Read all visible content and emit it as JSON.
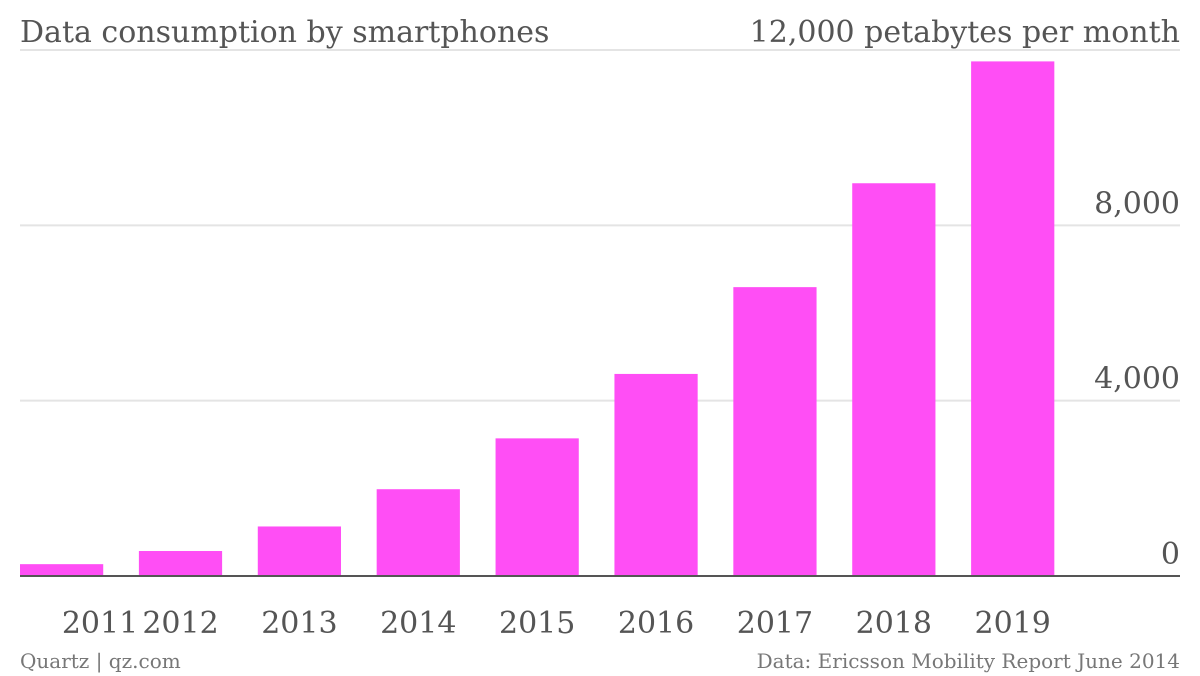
{
  "chart_data": {
    "type": "bar",
    "title": "Data consumption by smartphones",
    "unit_label": "12,000 petabytes per month",
    "categories": [
      "2011",
      "2012",
      "2013",
      "2014",
      "2015",
      "2016",
      "2017",
      "2018",
      "2019"
    ],
    "values": [
      270,
      570,
      1130,
      1980,
      3140,
      4610,
      6590,
      8960,
      11740
    ],
    "ylim": [
      0,
      12000
    ],
    "yticks": [
      {
        "value": 0,
        "label": "0"
      },
      {
        "value": 4000,
        "label": "4,000"
      },
      {
        "value": 8000,
        "label": "8,000"
      }
    ],
    "grid": true,
    "bar_color": "#ff4ef5",
    "y_axis_side": "right"
  },
  "footer": {
    "left": "Quartz | qz.com",
    "right": "Data: Ericsson Mobility Report June 2014"
  }
}
